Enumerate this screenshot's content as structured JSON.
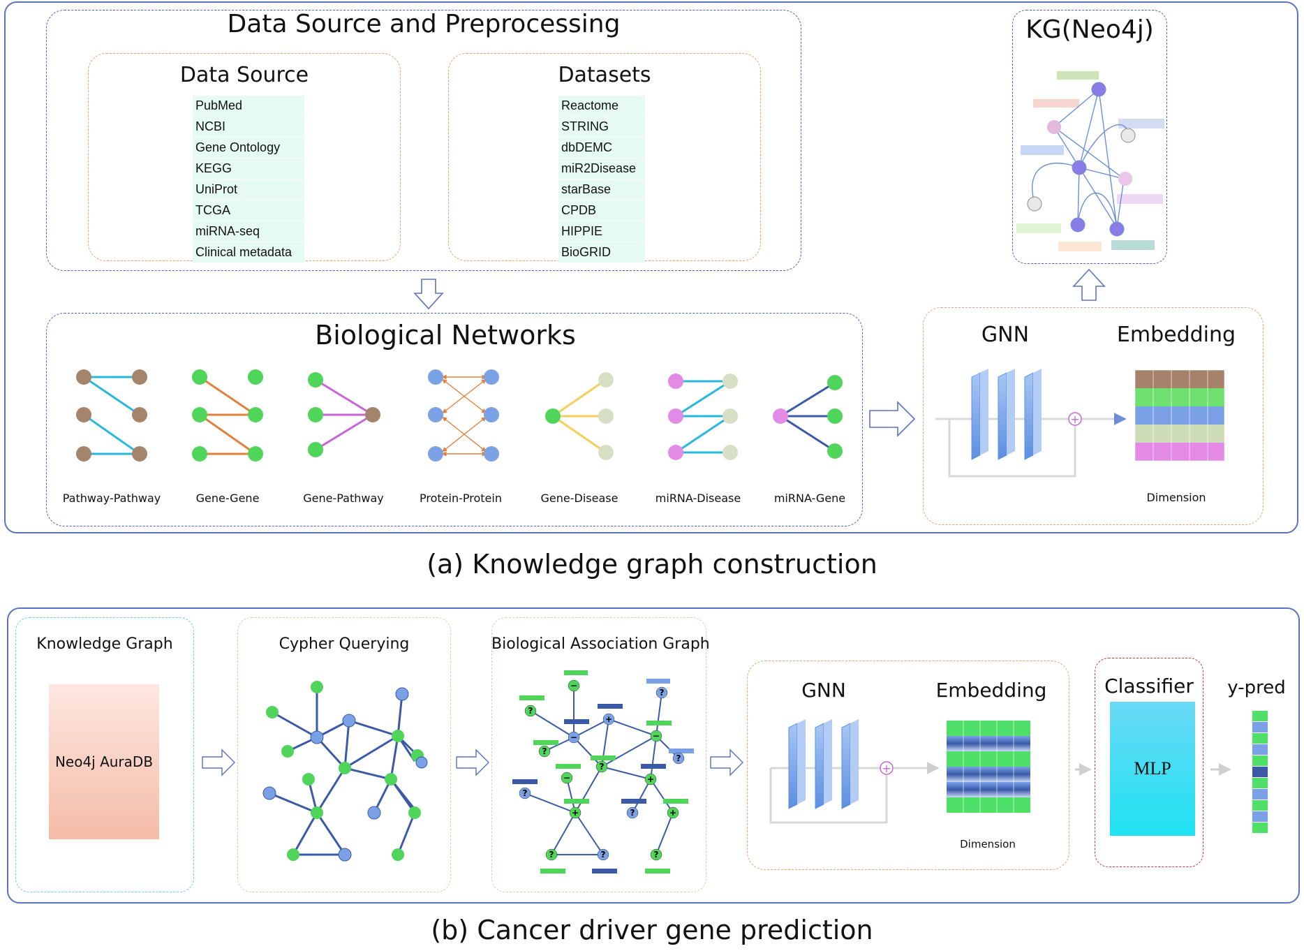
{
  "panel_a": {
    "preprocessing_title": "Data Source and Preprocessing",
    "data_source": {
      "title": "Data Source",
      "items": [
        "PubMed",
        "NCBI",
        "Gene Ontology",
        "KEGG",
        "UniProt",
        "TCGA",
        "miRNA-seq",
        "Clinical metadata"
      ]
    },
    "datasets": {
      "title": "Datasets",
      "items": [
        "Reactome",
        "STRING",
        "dbDEMC",
        "miR2Disease",
        "starBase",
        "CPDB",
        "HIPPIE",
        "BioGRID"
      ]
    },
    "kg_title": "KG(Neo4j)",
    "networks_title": "Biological Networks",
    "networks": [
      {
        "label": "Pathway-Pathway"
      },
      {
        "label": "Gene-Gene"
      },
      {
        "label": "Gene-Pathway"
      },
      {
        "label": "Protein-Protein"
      },
      {
        "label": "Gene-Disease"
      },
      {
        "label": "miRNA-Disease"
      },
      {
        "label": "miRNA-Gene"
      }
    ],
    "gnn_label": "GNN",
    "embedding_label": "Embedding",
    "dimension_label": "Dimension",
    "caption": "(a) Knowledge graph construction"
  },
  "panel_b": {
    "kg_title": "Knowledge Graph",
    "kg_box_label": "Neo4j AuraDB",
    "cypher_title": "Cypher Querying",
    "bag_title": "Biological Association Graph",
    "gnn_label": "GNN",
    "embedding_label": "Embedding",
    "dimension_label": "Dimension",
    "classifier_title": "Classifier",
    "mlp_label": "MLP",
    "ypred_label": "y-pred",
    "caption": "(b) Cancer driver gene prediction"
  },
  "colors": {
    "frame_blue": "#5b72c4",
    "dashed_blue": "#4f5fc9",
    "dashed_orange": "#f0a06a",
    "node_brown": "#a4846a",
    "node_green": "#4fd65a",
    "node_blue": "#7aa1e6",
    "node_pink": "#e28ae6",
    "node_pale": "#d7dfc4",
    "edge_cyan": "#27b8dc",
    "edge_orange": "#e0813c",
    "edge_purple": "#c765d6",
    "edge_yellow": "#f2cf5a",
    "edge_navy": "#3a5aa8"
  }
}
